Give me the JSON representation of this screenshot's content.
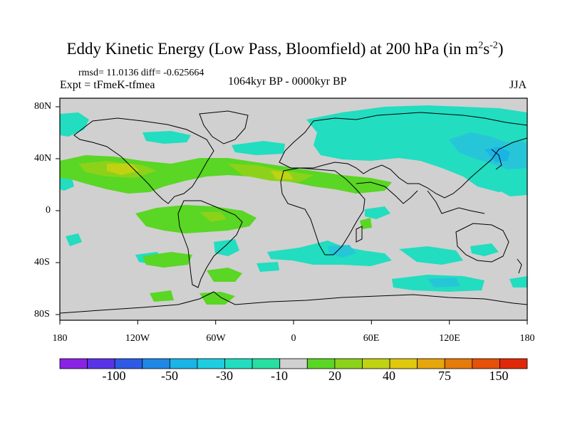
{
  "title": {
    "main": "Eddy Kinetic Energy (Low Pass, Bloomfield) at 200 hPa (in m",
    "sup1": "2",
    "mid": "s",
    "sup2": "-2",
    "end": ")"
  },
  "stats": "rmsd= 11.0136 diff= -0.625664",
  "experiment": "Expt = tFmeK-tfmea",
  "period": "1064kyr BP - 0000kyr BP",
  "season": "JJA",
  "lat_labels": [
    "80N",
    "40N",
    "0",
    "40S",
    "80S"
  ],
  "lon_labels": [
    "180",
    "120W",
    "60W",
    "0",
    "60E",
    "120E",
    "180"
  ],
  "colorbar": {
    "labels": [
      "-100",
      "-50",
      "-30",
      "-10",
      "20",
      "40",
      "75",
      "150"
    ],
    "colors": [
      "#8a22e6",
      "#5a32e6",
      "#2f5ae6",
      "#1f88e6",
      "#1ab4e6",
      "#1ecde0",
      "#22ddc0",
      "#26e0a2",
      "#d0d0d0",
      "#5ad624",
      "#8cd21a",
      "#c0d212",
      "#e0c80e",
      "#e6a60c",
      "#e67a0a",
      "#e65008",
      "#e02808"
    ]
  },
  "colors": {
    "land_bg": "#d0d0d0",
    "ocean_bg": "#d0d0d0"
  }
}
